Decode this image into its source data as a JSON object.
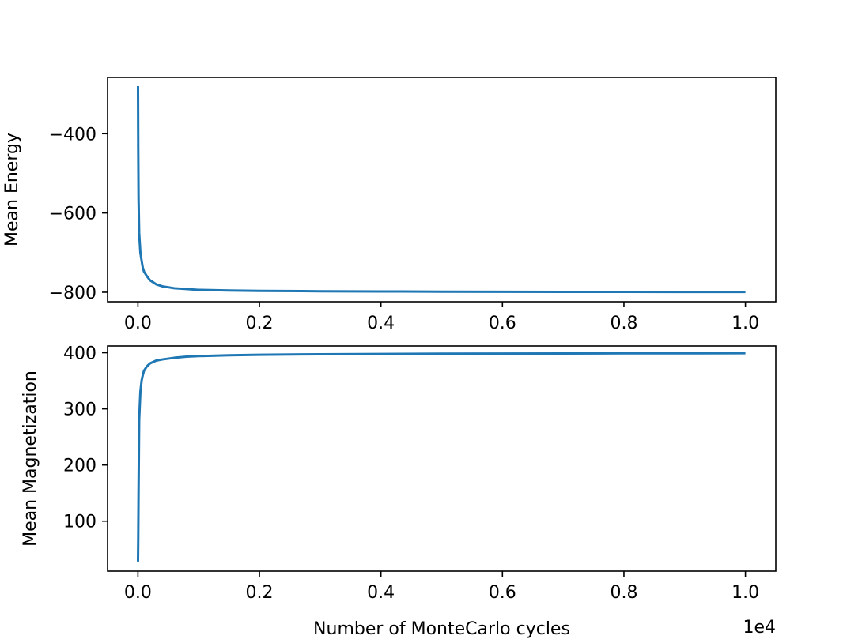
{
  "chart_data": [
    {
      "type": "line",
      "title": "",
      "xlabel": "",
      "ylabel": "Mean Energy",
      "xlim": [
        -500,
        10500
      ],
      "ylim": [
        -824,
        -258
      ],
      "xticks": [
        0,
        2000,
        4000,
        6000,
        8000,
        10000
      ],
      "xtick_labels": [
        "0.0",
        "0.2",
        "0.4",
        "0.6",
        "0.8",
        "1.0"
      ],
      "yticks": [
        -400,
        -600,
        -800
      ],
      "ytick_labels": [
        "−400",
        "−600",
        "−800"
      ],
      "grid": false,
      "color": "#1f77b4",
      "series": [
        {
          "x": [
            1,
            5,
            10,
            20,
            40,
            60,
            80,
            100,
            150,
            200,
            300,
            400,
            600,
            800,
            1000,
            1500,
            2000,
            3000,
            4000,
            5000,
            6000,
            7000,
            8000,
            9000,
            10000
          ],
          "values": [
            -280,
            -438,
            -560,
            -650,
            -700,
            -720,
            -738,
            -748,
            -760,
            -770,
            -780,
            -785,
            -790,
            -792,
            -794,
            -795.5,
            -796.5,
            -797.5,
            -798,
            -798.5,
            -798.8,
            -799,
            -799.2,
            -799.3,
            -799.4
          ]
        }
      ]
    },
    {
      "type": "line",
      "title": "",
      "xlabel": "Number of MonteCarlo cycles",
      "ylabel": "Mean Magnetization",
      "xlim": [
        -500,
        10500
      ],
      "ylim": [
        11,
        412
      ],
      "xticks": [
        0,
        2000,
        4000,
        6000,
        8000,
        10000
      ],
      "xtick_labels": [
        "0.0",
        "0.2",
        "0.4",
        "0.6",
        "0.8",
        "1.0"
      ],
      "yticks": [
        100,
        200,
        300,
        400
      ],
      "ytick_labels": [
        "100",
        "200",
        "300",
        "400"
      ],
      "x_offset_label": "1e4",
      "grid": false,
      "color": "#1f77b4",
      "series": [
        {
          "x": [
            1,
            5,
            10,
            20,
            40,
            60,
            80,
            100,
            150,
            200,
            300,
            400,
            600,
            800,
            1000,
            1500,
            2000,
            3000,
            4000,
            5000,
            6000,
            7000,
            8000,
            9000,
            10000
          ],
          "values": [
            28,
            70,
            150,
            280,
            330,
            350,
            360,
            368,
            376,
            381,
            386,
            388,
            391,
            393,
            394,
            395.5,
            396.3,
            397.3,
            397.8,
            398.2,
            398.5,
            398.7,
            398.9,
            399,
            399.1
          ]
        }
      ]
    }
  ]
}
